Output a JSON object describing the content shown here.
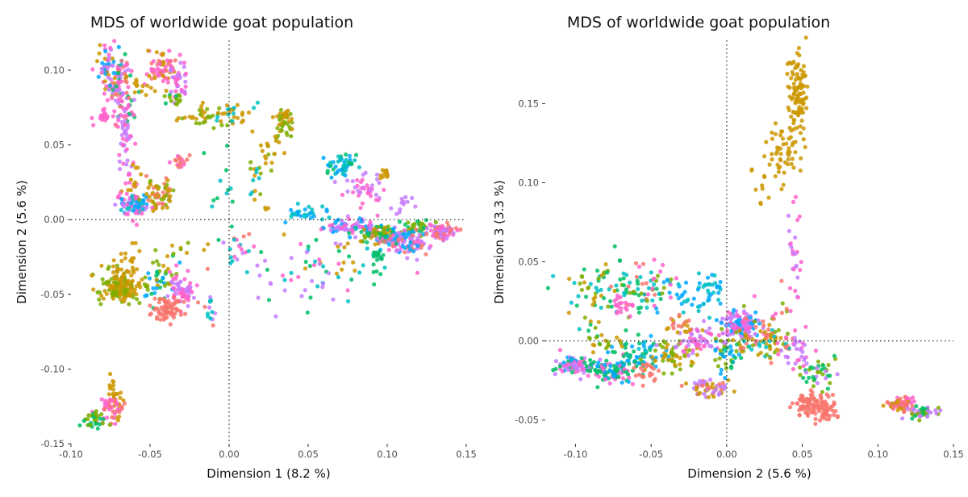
{
  "palette": [
    "#F8766D",
    "#CD9600",
    "#7CAE00",
    "#00BE67",
    "#00BFC4",
    "#00A9FF",
    "#C77CFF",
    "#FF61CC"
  ],
  "chart_data": [
    {
      "type": "scatter",
      "title": "MDS of worldwide goat population",
      "xlabel": "Dimension 1 (8.2 %)",
      "ylabel": "Dimension 2 (5.6 %)",
      "xlim": [
        -0.1,
        0.15
      ],
      "ylim": [
        -0.15,
        0.12
      ],
      "xticks": [
        -0.1,
        -0.05,
        0.0,
        0.05,
        0.1,
        0.15
      ],
      "xtick_labels": [
        "-0.10",
        "-0.05",
        "0.00",
        "0.05",
        "0.10",
        "0.15"
      ],
      "yticks": [
        -0.15,
        -0.1,
        -0.05,
        0.0,
        0.05,
        0.1
      ],
      "ytick_labels": [
        "-0.15",
        "-0.10",
        "-0.05",
        "0.00",
        "0.05",
        "0.10"
      ],
      "reference_lines": {
        "x": 0,
        "y": 0,
        "style": "dotted"
      },
      "grid": false,
      "legend": "none",
      "clusters": [
        {
          "x": -0.075,
          "y": 0.1,
          "sx": 0.005,
          "sy": 0.008,
          "n": 70,
          "c": [
            5,
            6,
            7,
            1
          ]
        },
        {
          "x": -0.068,
          "y": 0.08,
          "sx": 0.004,
          "sy": 0.015,
          "n": 90,
          "c": [
            7,
            6,
            0,
            3
          ]
        },
        {
          "x": -0.08,
          "y": 0.069,
          "sx": 0.003,
          "sy": 0.002,
          "n": 18,
          "c": [
            7
          ]
        },
        {
          "x": -0.066,
          "y": 0.05,
          "sx": 0.002,
          "sy": 0.012,
          "n": 30,
          "c": [
            7,
            6
          ]
        },
        {
          "x": -0.042,
          "y": 0.1,
          "sx": 0.005,
          "sy": 0.006,
          "n": 70,
          "c": [
            0,
            7,
            1
          ]
        },
        {
          "x": -0.032,
          "y": 0.092,
          "sx": 0.003,
          "sy": 0.006,
          "n": 30,
          "c": [
            6,
            7
          ]
        },
        {
          "x": -0.035,
          "y": 0.08,
          "sx": 0.003,
          "sy": 0.003,
          "n": 14,
          "c": [
            3,
            2
          ]
        },
        {
          "x": -0.055,
          "y": 0.09,
          "sx": 0.004,
          "sy": 0.003,
          "n": 12,
          "c": [
            1
          ]
        },
        {
          "x": -0.015,
          "y": 0.068,
          "sx": 0.008,
          "sy": 0.004,
          "n": 35,
          "c": [
            1,
            2
          ]
        },
        {
          "x": 0.005,
          "y": 0.07,
          "sx": 0.006,
          "sy": 0.005,
          "n": 25,
          "c": [
            4,
            1
          ]
        },
        {
          "x": 0.035,
          "y": 0.065,
          "sx": 0.003,
          "sy": 0.005,
          "n": 45,
          "c": [
            2,
            1
          ]
        },
        {
          "x": 0.025,
          "y": 0.045,
          "sx": 0.005,
          "sy": 0.005,
          "n": 18,
          "c": [
            1,
            2
          ]
        },
        {
          "x": 0.018,
          "y": 0.025,
          "sx": 0.004,
          "sy": 0.01,
          "n": 18,
          "c": [
            2,
            1,
            4
          ]
        },
        {
          "x": -0.03,
          "y": 0.04,
          "sx": 0.003,
          "sy": 0.003,
          "n": 18,
          "c": [
            7,
            0
          ]
        },
        {
          "x": -0.062,
          "y": 0.025,
          "sx": 0.003,
          "sy": 0.01,
          "n": 20,
          "c": [
            1,
            7
          ]
        },
        {
          "x": -0.06,
          "y": 0.01,
          "sx": 0.006,
          "sy": 0.004,
          "n": 80,
          "c": [
            6,
            7,
            5,
            4
          ]
        },
        {
          "x": -0.044,
          "y": 0.016,
          "sx": 0.004,
          "sy": 0.006,
          "n": 60,
          "c": [
            1,
            2,
            0
          ]
        },
        {
          "x": -0.006,
          "y": 0.02,
          "sx": 0.004,
          "sy": 0.015,
          "n": 14,
          "c": [
            4,
            3
          ]
        },
        {
          "x": 0.005,
          "y": -0.02,
          "sx": 0.008,
          "sy": 0.008,
          "n": 22,
          "c": [
            7,
            0,
            4,
            6
          ]
        },
        {
          "x": 0.05,
          "y": 0.005,
          "sx": 0.006,
          "sy": 0.003,
          "n": 30,
          "c": [
            4,
            5
          ]
        },
        {
          "x": 0.07,
          "y": 0.037,
          "sx": 0.005,
          "sy": 0.004,
          "n": 45,
          "c": [
            4,
            5,
            3
          ]
        },
        {
          "x": 0.085,
          "y": 0.02,
          "sx": 0.006,
          "sy": 0.005,
          "n": 40,
          "c": [
            7,
            6
          ]
        },
        {
          "x": 0.1,
          "y": 0.031,
          "sx": 0.002,
          "sy": 0.002,
          "n": 12,
          "c": [
            1
          ]
        },
        {
          "x": 0.11,
          "y": 0.01,
          "sx": 0.003,
          "sy": 0.004,
          "n": 12,
          "c": [
            6
          ]
        },
        {
          "x": 0.12,
          "y": -0.005,
          "sx": 0.006,
          "sy": 0.003,
          "n": 30,
          "c": [
            2,
            3
          ]
        },
        {
          "x": 0.08,
          "y": -0.005,
          "sx": 0.01,
          "sy": 0.003,
          "n": 90,
          "c": [
            6,
            5,
            7
          ]
        },
        {
          "x": 0.095,
          "y": -0.01,
          "sx": 0.007,
          "sy": 0.003,
          "n": 70,
          "c": [
            1,
            2,
            3
          ]
        },
        {
          "x": 0.112,
          "y": -0.015,
          "sx": 0.008,
          "sy": 0.004,
          "n": 110,
          "c": [
            6,
            5,
            7,
            0
          ]
        },
        {
          "x": 0.135,
          "y": -0.008,
          "sx": 0.005,
          "sy": 0.003,
          "n": 80,
          "c": [
            0,
            7,
            6
          ]
        },
        {
          "x": 0.07,
          "y": -0.025,
          "sx": 0.02,
          "sy": 0.01,
          "n": 50,
          "c": [
            3,
            7,
            4,
            1,
            6
          ]
        },
        {
          "x": 0.04,
          "y": -0.04,
          "sx": 0.015,
          "sy": 0.01,
          "n": 30,
          "c": [
            7,
            6,
            4,
            3
          ]
        },
        {
          "x": 0.095,
          "y": -0.025,
          "sx": 0.003,
          "sy": 0.003,
          "n": 14,
          "c": [
            3
          ]
        },
        {
          "x": -0.07,
          "y": -0.045,
          "sx": 0.006,
          "sy": 0.006,
          "n": 140,
          "c": [
            1,
            2
          ]
        },
        {
          "x": -0.065,
          "y": -0.03,
          "sx": 0.003,
          "sy": 0.008,
          "n": 30,
          "c": [
            1
          ]
        },
        {
          "x": -0.045,
          "y": -0.04,
          "sx": 0.005,
          "sy": 0.006,
          "n": 50,
          "c": [
            2,
            3,
            5,
            1
          ]
        },
        {
          "x": -0.03,
          "y": -0.048,
          "sx": 0.005,
          "sy": 0.006,
          "n": 60,
          "c": [
            6,
            7
          ]
        },
        {
          "x": -0.038,
          "y": -0.061,
          "sx": 0.006,
          "sy": 0.004,
          "n": 70,
          "c": [
            0
          ]
        },
        {
          "x": -0.012,
          "y": -0.06,
          "sx": 0.003,
          "sy": 0.005,
          "n": 14,
          "c": [
            6,
            0,
            4
          ]
        },
        {
          "x": -0.072,
          "y": -0.12,
          "sx": 0.002,
          "sy": 0.008,
          "n": 30,
          "c": [
            1
          ]
        },
        {
          "x": -0.074,
          "y": -0.126,
          "sx": 0.005,
          "sy": 0.005,
          "n": 40,
          "c": [
            7,
            0
          ]
        },
        {
          "x": -0.085,
          "y": -0.134,
          "sx": 0.004,
          "sy": 0.004,
          "n": 30,
          "c": [
            3,
            2
          ]
        },
        {
          "x": -0.03,
          "y": -0.02,
          "sx": 0.01,
          "sy": 0.005,
          "n": 10,
          "c": [
            2,
            1
          ]
        }
      ]
    },
    {
      "type": "scatter",
      "title": "MDS of worldwide goat population",
      "xlabel": "Dimension 2 (5.6 %)",
      "ylabel": "Dimension 3 (3.3 %)",
      "xlim": [
        -0.12,
        0.15
      ],
      "ylim": [
        -0.065,
        0.19
      ],
      "xticks": [
        -0.1,
        -0.05,
        0.0,
        0.05,
        0.1,
        0.15
      ],
      "xtick_labels": [
        "-0.10",
        "-0.05",
        "0.00",
        "0.05",
        "0.10",
        "0.15"
      ],
      "yticks": [
        -0.05,
        0.0,
        0.05,
        0.1,
        0.15
      ],
      "ytick_labels": [
        "-0.05",
        "0.00",
        "0.05",
        "0.10",
        "0.15"
      ],
      "reference_lines": {
        "x": 0,
        "y": 0,
        "style": "dotted"
      },
      "grid": false,
      "legend": "none",
      "clusters": [
        {
          "x": 0.047,
          "y": 0.155,
          "sx": 0.003,
          "sy": 0.015,
          "n": 110,
          "c": [
            1
          ]
        },
        {
          "x": 0.038,
          "y": 0.12,
          "sx": 0.005,
          "sy": 0.01,
          "n": 45,
          "c": [
            1
          ]
        },
        {
          "x": 0.025,
          "y": 0.1,
          "sx": 0.008,
          "sy": 0.008,
          "n": 12,
          "c": [
            1
          ]
        },
        {
          "x": 0.045,
          "y": 0.05,
          "sx": 0.002,
          "sy": 0.02,
          "n": 25,
          "c": [
            6,
            7
          ]
        },
        {
          "x": -0.085,
          "y": 0.03,
          "sx": 0.015,
          "sy": 0.01,
          "n": 60,
          "c": [
            2,
            3,
            4,
            1
          ]
        },
        {
          "x": -0.06,
          "y": 0.035,
          "sx": 0.01,
          "sy": 0.008,
          "n": 45,
          "c": [
            4,
            3,
            0
          ]
        },
        {
          "x": -0.03,
          "y": 0.028,
          "sx": 0.01,
          "sy": 0.008,
          "n": 30,
          "c": [
            4,
            5
          ]
        },
        {
          "x": -0.01,
          "y": 0.03,
          "sx": 0.006,
          "sy": 0.008,
          "n": 30,
          "c": [
            4,
            5
          ]
        },
        {
          "x": -0.045,
          "y": 0.04,
          "sx": 0.008,
          "sy": 0.008,
          "n": 20,
          "c": [
            7,
            2
          ]
        },
        {
          "x": -0.07,
          "y": 0.022,
          "sx": 0.005,
          "sy": 0.004,
          "n": 20,
          "c": [
            7
          ]
        },
        {
          "x": -0.1,
          "y": -0.015,
          "sx": 0.008,
          "sy": 0.003,
          "n": 90,
          "c": [
            5,
            6,
            7,
            3
          ]
        },
        {
          "x": -0.075,
          "y": -0.02,
          "sx": 0.006,
          "sy": 0.004,
          "n": 80,
          "c": [
            7,
            3,
            5
          ]
        },
        {
          "x": -0.06,
          "y": -0.01,
          "sx": 0.008,
          "sy": 0.006,
          "n": 60,
          "c": [
            4,
            5,
            3
          ]
        },
        {
          "x": -0.035,
          "y": -0.01,
          "sx": 0.008,
          "sy": 0.005,
          "n": 50,
          "c": [
            1,
            2
          ]
        },
        {
          "x": -0.02,
          "y": 0.0,
          "sx": 0.01,
          "sy": 0.005,
          "n": 60,
          "c": [
            7,
            6
          ]
        },
        {
          "x": -0.012,
          "y": -0.03,
          "sx": 0.008,
          "sy": 0.003,
          "n": 60,
          "c": [
            1,
            6,
            0
          ]
        },
        {
          "x": 0.0,
          "y": -0.01,
          "sx": 0.005,
          "sy": 0.006,
          "n": 40,
          "c": [
            2,
            5,
            3
          ]
        },
        {
          "x": 0.01,
          "y": 0.01,
          "sx": 0.006,
          "sy": 0.004,
          "n": 150,
          "c": [
            6,
            7,
            5
          ]
        },
        {
          "x": 0.025,
          "y": 0.0,
          "sx": 0.01,
          "sy": 0.006,
          "n": 80,
          "c": [
            0,
            1,
            2,
            4
          ]
        },
        {
          "x": 0.045,
          "y": -0.005,
          "sx": 0.006,
          "sy": 0.006,
          "n": 30,
          "c": [
            6,
            7
          ]
        },
        {
          "x": 0.06,
          "y": -0.02,
          "sx": 0.008,
          "sy": 0.005,
          "n": 40,
          "c": [
            3,
            2,
            6
          ]
        },
        {
          "x": 0.055,
          "y": -0.04,
          "sx": 0.006,
          "sy": 0.004,
          "n": 80,
          "c": [
            0
          ]
        },
        {
          "x": 0.065,
          "y": -0.045,
          "sx": 0.004,
          "sy": 0.004,
          "n": 40,
          "c": [
            0
          ]
        },
        {
          "x": 0.115,
          "y": -0.04,
          "sx": 0.005,
          "sy": 0.002,
          "n": 60,
          "c": [
            1,
            0,
            7
          ]
        },
        {
          "x": 0.13,
          "y": -0.045,
          "sx": 0.005,
          "sy": 0.002,
          "n": 50,
          "c": [
            3,
            6,
            2
          ]
        },
        {
          "x": -0.03,
          "y": 0.01,
          "sx": 0.006,
          "sy": 0.004,
          "n": 20,
          "c": [
            1,
            0
          ]
        },
        {
          "x": -0.08,
          "y": 0.0,
          "sx": 0.01,
          "sy": 0.008,
          "n": 25,
          "c": [
            3,
            2,
            1
          ]
        },
        {
          "x": 0.04,
          "y": 0.02,
          "sx": 0.01,
          "sy": 0.01,
          "n": 20,
          "c": [
            7,
            2,
            0
          ]
        },
        {
          "x": -0.05,
          "y": -0.02,
          "sx": 0.005,
          "sy": 0.003,
          "n": 20,
          "c": [
            0
          ]
        }
      ]
    }
  ]
}
